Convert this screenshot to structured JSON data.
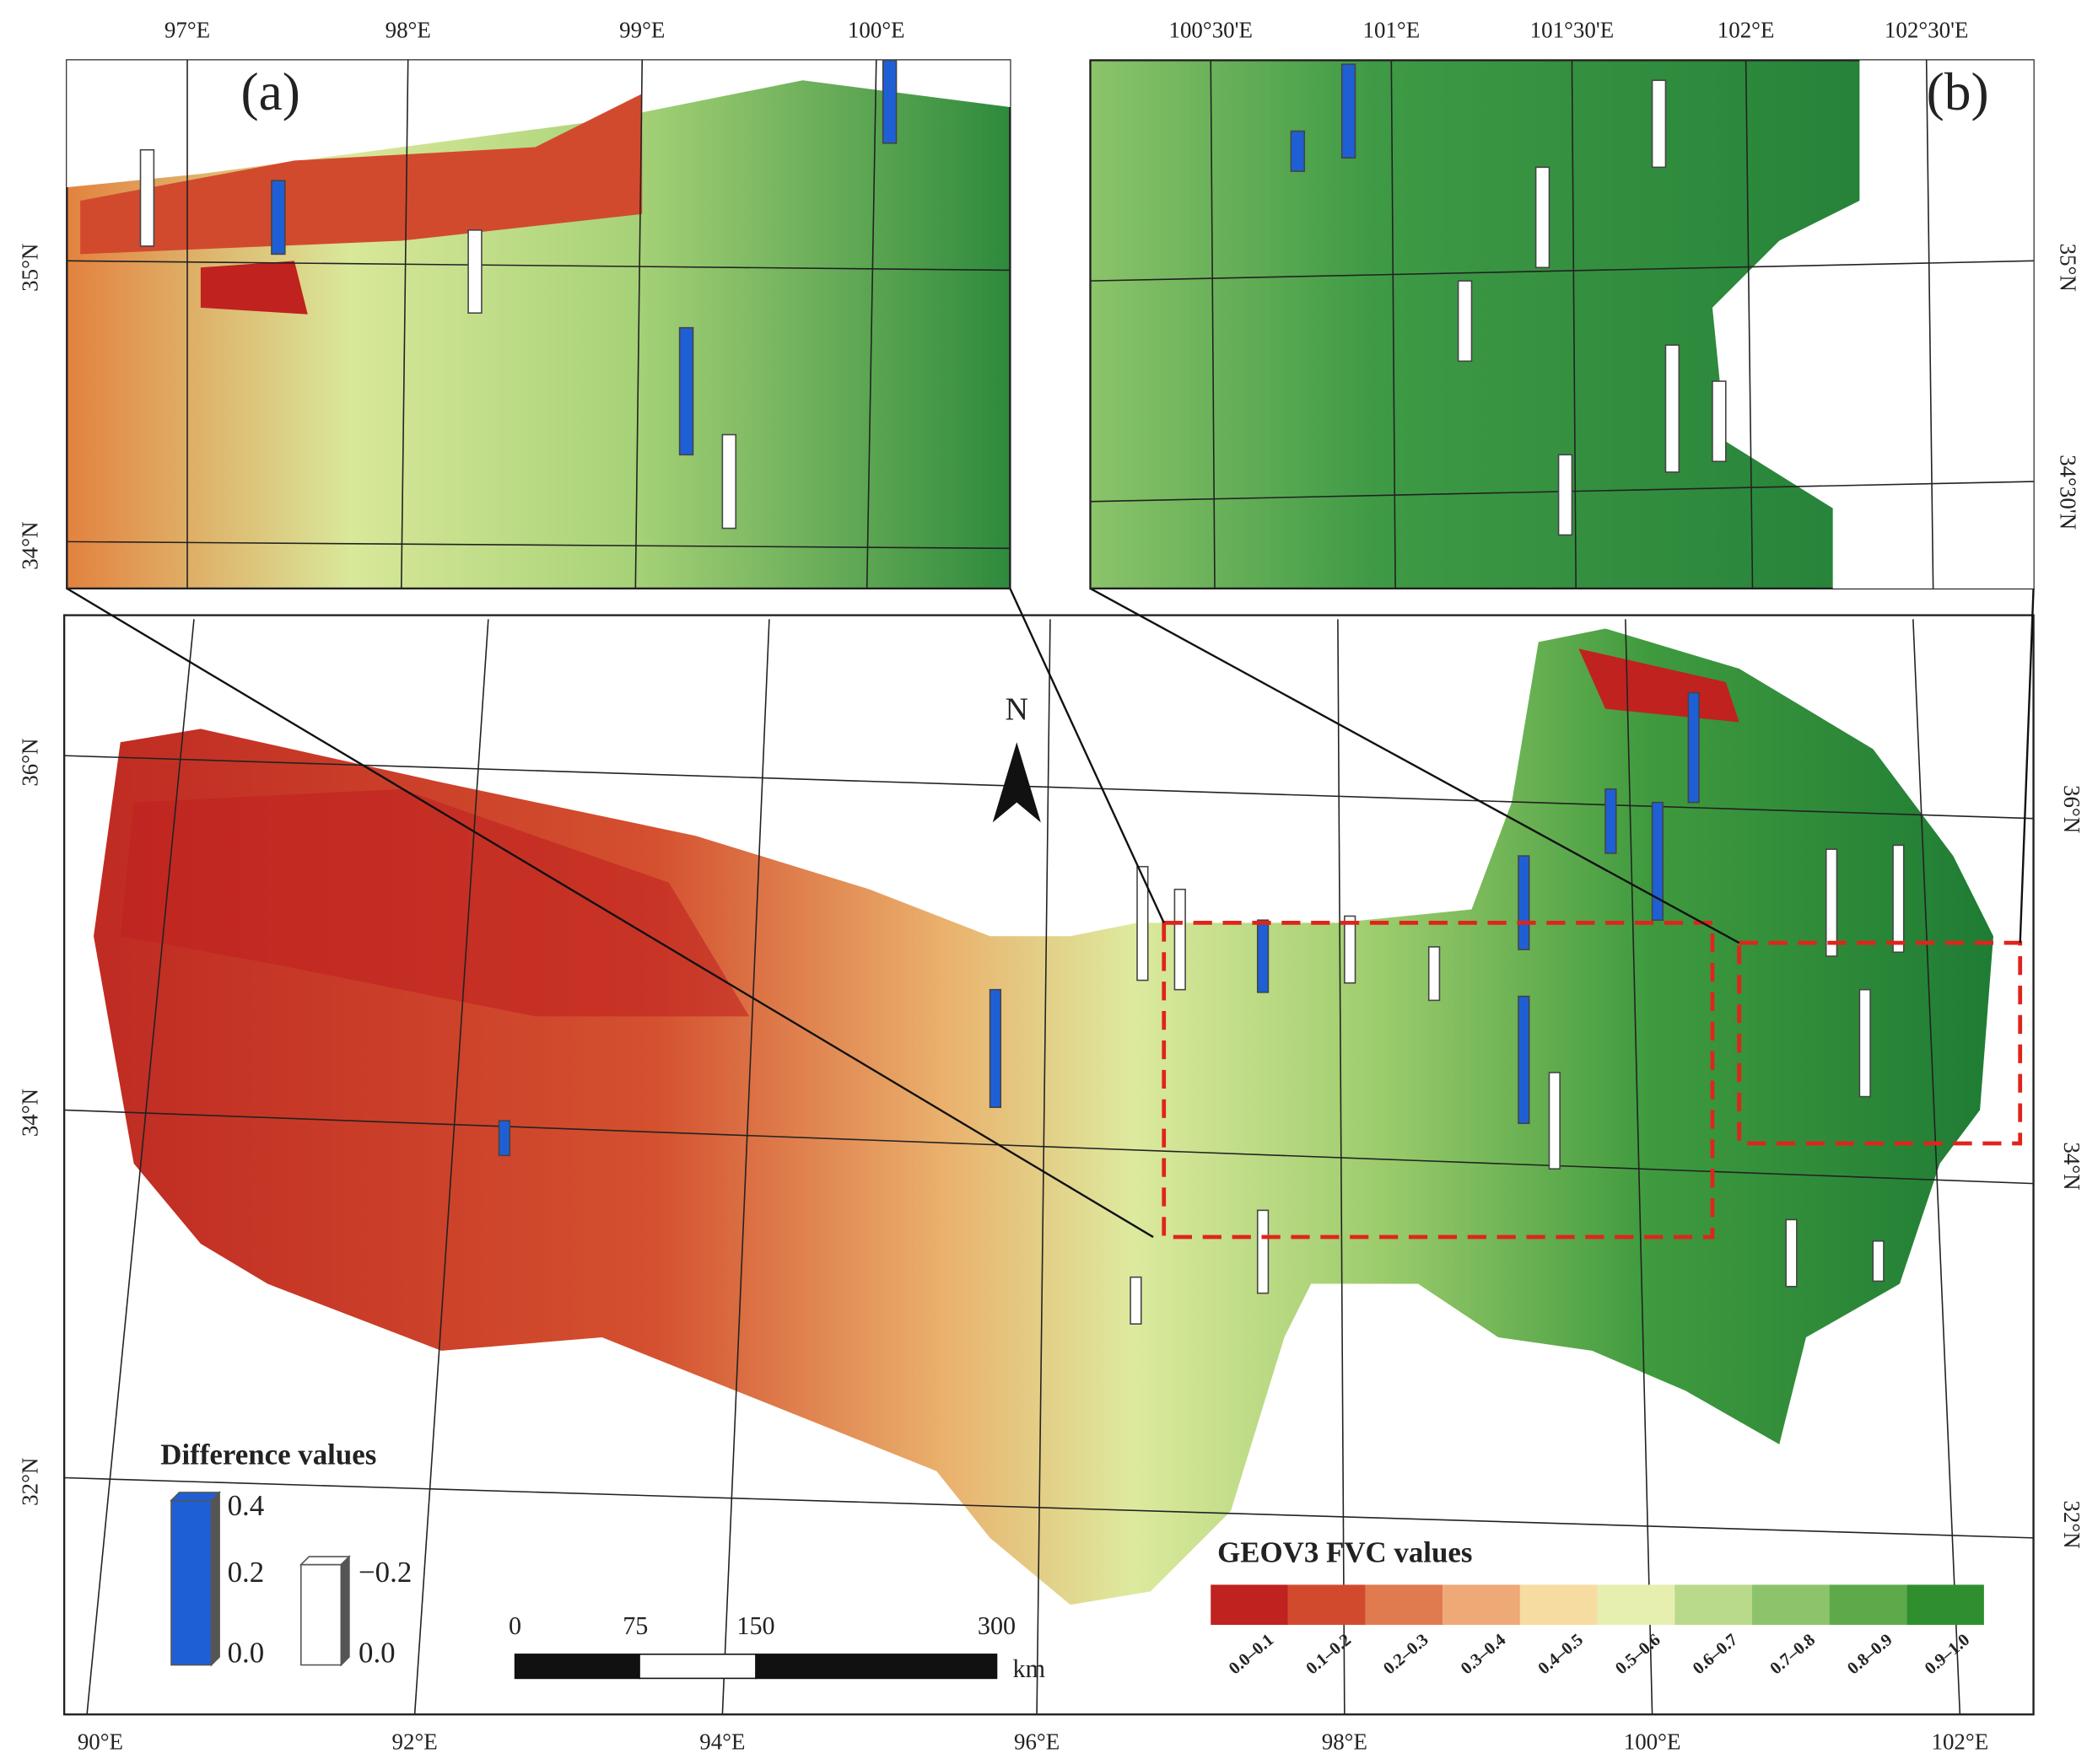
{
  "inset_a": {
    "label": "(a)",
    "lon_labels": [
      "97°E",
      "98°E",
      "99°E",
      "100°E"
    ],
    "lat_labels": [
      "35°N",
      "34°N"
    ]
  },
  "inset_b": {
    "label": "(b)",
    "lon_labels": [
      "100°30'E",
      "101°E",
      "101°30'E",
      "102°E",
      "102°30'E"
    ],
    "lat_labels": [
      "35°N",
      "34°30'N"
    ]
  },
  "main": {
    "north": "N",
    "lat_labels_left": [
      "36°N",
      "34°N",
      "32°N"
    ],
    "lat_labels_right": [
      "36°N",
      "34°N",
      "32°N"
    ],
    "lon_labels": [
      "90°E",
      "92°E",
      "94°E",
      "96°E",
      "98°E",
      "100°E",
      "102°E"
    ]
  },
  "difference_legend": {
    "title": "Difference values",
    "positive": {
      "color": "#1f5fd6",
      "labels": [
        "0.4",
        "0.2",
        "0.0"
      ]
    },
    "negative": {
      "color": "#ffffff",
      "labels": [
        "−0.2",
        "0.0"
      ]
    }
  },
  "scale_bar": {
    "labels": [
      "0",
      "75",
      "150",
      "300"
    ],
    "unit": "km"
  },
  "fvc_legend": {
    "title": "GEOV3 FVC values",
    "classes": [
      {
        "label": "0.0–0.1",
        "color": "#c0221f"
      },
      {
        "label": "0.1–0.2",
        "color": "#d24a2e"
      },
      {
        "label": "0.2–0.3",
        "color": "#e07a4f"
      },
      {
        "label": "0.3–0.4",
        "color": "#eea977"
      },
      {
        "label": "0.4–0.5",
        "color": "#f6dca0"
      },
      {
        "label": "0.5–0.6",
        "color": "#e6efb0"
      },
      {
        "label": "0.6–0.7",
        "color": "#b9da8a"
      },
      {
        "label": "0.7–0.8",
        "color": "#8dc46b"
      },
      {
        "label": "0.8–0.9",
        "color": "#5eaa4b"
      },
      {
        "label": "0.9–1.0",
        "color": "#2f8f2e"
      }
    ]
  }
}
